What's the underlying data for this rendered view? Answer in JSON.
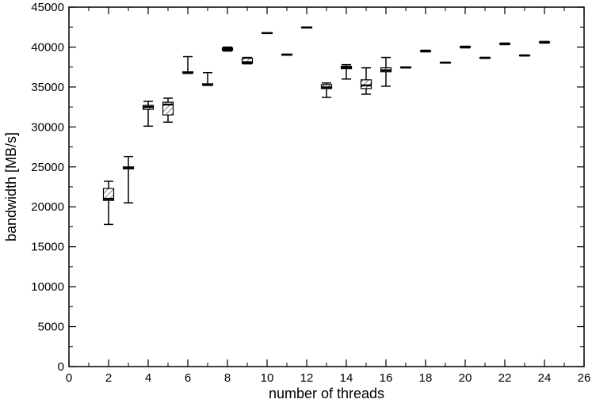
{
  "chart_data": {
    "type": "box",
    "xlabel": "number of threads",
    "ylabel": "bandwidth [MB/s]",
    "xlim": [
      0,
      26
    ],
    "ylim": [
      0,
      45000
    ],
    "x_ticks": [
      0,
      2,
      4,
      6,
      8,
      10,
      12,
      14,
      16,
      18,
      20,
      22,
      24,
      26
    ],
    "y_ticks": [
      0,
      5000,
      10000,
      15000,
      20000,
      25000,
      30000,
      35000,
      40000,
      45000
    ],
    "grid": false,
    "boxes": [
      {
        "x": 2,
        "min": 17800,
        "q1": 20800,
        "median": 21000,
        "q3": 22300,
        "max": 23200
      },
      {
        "x": 3,
        "min": 20500,
        "q1": 24750,
        "median": 24900,
        "q3": 25000,
        "max": 26300
      },
      {
        "x": 4,
        "min": 30100,
        "q1": 32200,
        "median": 32500,
        "q3": 32700,
        "max": 33200
      },
      {
        "x": 5,
        "min": 30600,
        "q1": 31500,
        "median": 32800,
        "q3": 33100,
        "max": 33600
      },
      {
        "x": 6,
        "min": 36700,
        "q1": 36750,
        "median": 36800,
        "q3": 36900,
        "max": 38800
      },
      {
        "x": 7,
        "min": 35200,
        "q1": 35250,
        "median": 35300,
        "q3": 35400,
        "max": 36800
      },
      {
        "x": 8,
        "min": 39500,
        "q1": 39600,
        "median": 39750,
        "q3": 39900,
        "max": 40000
      },
      {
        "x": 9,
        "min": 37900,
        "q1": 37950,
        "median": 38100,
        "q3": 38600,
        "max": 38700
      },
      {
        "x": 10,
        "min": 41700,
        "q1": 41700,
        "median": 41750,
        "q3": 41800,
        "max": 41800
      },
      {
        "x": 11,
        "min": 39000,
        "q1": 39000,
        "median": 39050,
        "q3": 39100,
        "max": 39100
      },
      {
        "x": 12,
        "min": 42400,
        "q1": 42400,
        "median": 42450,
        "q3": 42500,
        "max": 42500
      },
      {
        "x": 13,
        "min": 33700,
        "q1": 34800,
        "median": 34950,
        "q3": 35300,
        "max": 35500
      },
      {
        "x": 14,
        "min": 36000,
        "q1": 37300,
        "median": 37450,
        "q3": 37600,
        "max": 37800
      },
      {
        "x": 15,
        "min": 34100,
        "q1": 34800,
        "median": 35200,
        "q3": 35900,
        "max": 37400
      },
      {
        "x": 16,
        "min": 35100,
        "q1": 36900,
        "median": 37100,
        "q3": 37400,
        "max": 38700
      },
      {
        "x": 17,
        "min": 37400,
        "q1": 37400,
        "median": 37450,
        "q3": 37500,
        "max": 37500
      },
      {
        "x": 18,
        "min": 39400,
        "q1": 39450,
        "median": 39500,
        "q3": 39550,
        "max": 39600
      },
      {
        "x": 19,
        "min": 38000,
        "q1": 38000,
        "median": 38050,
        "q3": 38100,
        "max": 38100
      },
      {
        "x": 20,
        "min": 39900,
        "q1": 39950,
        "median": 40000,
        "q3": 40050,
        "max": 40100
      },
      {
        "x": 21,
        "min": 38600,
        "q1": 38600,
        "median": 38650,
        "q3": 38700,
        "max": 38700
      },
      {
        "x": 22,
        "min": 40300,
        "q1": 40350,
        "median": 40400,
        "q3": 40450,
        "max": 40500
      },
      {
        "x": 23,
        "min": 38900,
        "q1": 38900,
        "median": 38950,
        "q3": 39000,
        "max": 39000
      },
      {
        "x": 24,
        "min": 40500,
        "q1": 40550,
        "median": 40600,
        "q3": 40650,
        "max": 40700
      }
    ]
  }
}
